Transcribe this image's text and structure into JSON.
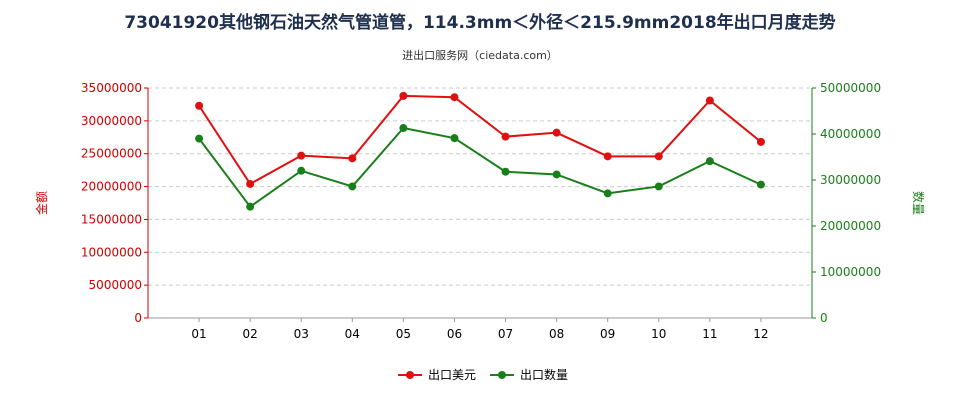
{
  "chart_data": {
    "type": "line",
    "title": "73041920其他钢石油天然气管道管，114.3mm＜外径＜215.9mm2018年出口月度走势",
    "subtitle": "进出口服务网（ciedata.com）",
    "categories": [
      "01",
      "02",
      "03",
      "04",
      "05",
      "06",
      "07",
      "08",
      "09",
      "10",
      "11",
      "12"
    ],
    "left_axis": {
      "label": "金额",
      "ylim": [
        0,
        35000000
      ],
      "ticks": [
        0,
        5000000,
        10000000,
        15000000,
        20000000,
        25000000,
        30000000,
        35000000
      ],
      "tick_labels": [
        "0",
        "5000000",
        "10000000",
        "15000000",
        "20000000",
        "25000000",
        "30000000",
        "35000000"
      ],
      "color": "#d00000"
    },
    "right_axis": {
      "label": "数量",
      "ylim": [
        0,
        50000000
      ],
      "ticks": [
        0,
        10000000,
        20000000,
        30000000,
        40000000,
        50000000
      ],
      "tick_labels": [
        "0",
        "10000000",
        "20000000",
        "30000000",
        "40000000",
        "50000000"
      ],
      "color": "#1a7f1a"
    },
    "series": [
      {
        "name": "出口美元",
        "axis": "left",
        "color": "#e01010",
        "values": [
          32300000,
          20400000,
          24700000,
          24300000,
          33800000,
          33600000,
          27600000,
          28200000,
          24600000,
          24600000,
          33100000,
          26800000
        ]
      },
      {
        "name": "出口数量",
        "axis": "right",
        "color": "#1a7f1a",
        "values": [
          39000000,
          24200000,
          32000000,
          28600000,
          41300000,
          39100000,
          31800000,
          31200000,
          27100000,
          28600000,
          34100000,
          29000000
        ]
      }
    ],
    "legend": "bottom-center",
    "grid": true
  }
}
